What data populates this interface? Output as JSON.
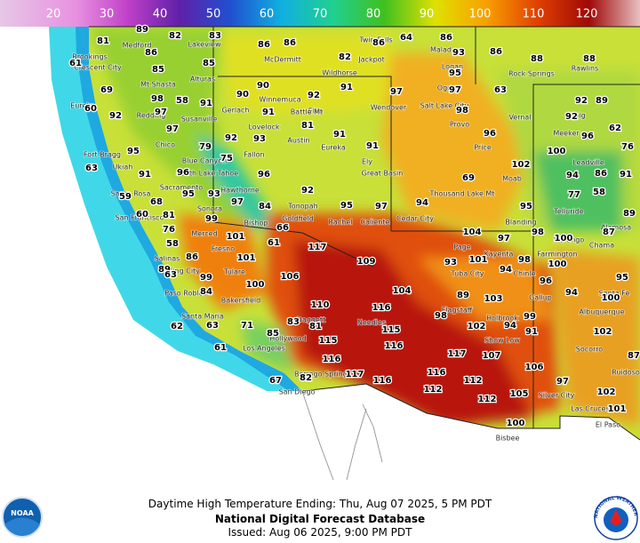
{
  "legend": {
    "values": [
      20,
      30,
      40,
      50,
      60,
      70,
      80,
      90,
      100,
      110,
      120
    ]
  },
  "temperatures": [
    81,
    89,
    82,
    83,
    86,
    86,
    64,
    86,
    86,
    61,
    86,
    85,
    85,
    82,
    86,
    88,
    88,
    93,
    95,
    90,
    69,
    98,
    58,
    91,
    90,
    92,
    91,
    97,
    97,
    63,
    89,
    92,
    60,
    92,
    97,
    91,
    98,
    81,
    96,
    92,
    62,
    97,
    92,
    93,
    91,
    95,
    79,
    91,
    100,
    96,
    76,
    75,
    91,
    96,
    102,
    94,
    86,
    91,
    63,
    96,
    92,
    69,
    59,
    68,
    95,
    93,
    97,
    84,
    95,
    97,
    94,
    95,
    77,
    58,
    89,
    60,
    81,
    99,
    76,
    66,
    101,
    61,
    117,
    104,
    97,
    98,
    100,
    87,
    58,
    86,
    101,
    109,
    93,
    101,
    94,
    98,
    100,
    89,
    63,
    99,
    106,
    84,
    100,
    104,
    89,
    103,
    96,
    94,
    100,
    95,
    110,
    116,
    98,
    99,
    102,
    94,
    91,
    102,
    62,
    63,
    71,
    83,
    81,
    115,
    85,
    115,
    116,
    117,
    107,
    87,
    61,
    116,
    106,
    67,
    82,
    117,
    116,
    112,
    116,
    112,
    97,
    105,
    102,
    112,
    101,
    100
  ],
  "places": [
    "Twin Falls",
    "Malad",
    "Brookings",
    "Medford",
    "Lakeview",
    "McDermitt",
    "Jackpot",
    "Rock Springs",
    "Rawlins",
    "Crescent City",
    "Logan",
    "Wildhorse",
    "Ogden",
    "Alturas",
    "Vernal",
    "Mt Shasta",
    "Winnemuca",
    "Salt Lake City",
    "Gerlach",
    "Elko",
    "Battle Mt",
    "Wendover",
    "Provo",
    "Eureka",
    "Redding",
    "Susanville",
    "Lovelock",
    "Craig",
    "Meeker",
    "Austin",
    "Eureka",
    "Price",
    "Chico",
    "Fallon",
    "Ely",
    "Fort Bragg",
    "Blue Canyon",
    "South Lake Tahoe",
    "Great Basin",
    "Moab",
    "Leadville",
    "Ukiah",
    "Sacramento",
    "Hawthorne",
    "Tonopah",
    "Thousand Lake Mt",
    "Telluride",
    "Santa Rosa",
    "Sonora",
    "Blanding",
    "Alamosa",
    "San Francisco",
    "Goldfield",
    "Bishop",
    "Rachel",
    "Caliente",
    "Cedar City",
    "Merced",
    "Page",
    "Kayenta",
    "Durango",
    "Chama",
    "Fresno",
    "Tulare",
    "Farmington",
    "Salinas",
    "King City",
    "Tuba City",
    "Chinle",
    "Paso Robles",
    "Bakersfield",
    "Flagstaff",
    "Gallup",
    "Santa Fe",
    "Santa Maria",
    "Albuquerque",
    "Holbrook",
    "Show Low",
    "Needles",
    "Daggett",
    "Los Angeles",
    "Hollywood",
    "San Diego",
    "Borrego Springs",
    "Socorro",
    "Ruidoso",
    "Silver City",
    "Las Cruces",
    "El Paso",
    "Bisbee"
  ],
  "caption": {
    "line1": "Daytime High Temperature Ending: Thu, Aug 07 2025, 5 PM PDT",
    "line2": "National Digital Forecast Database",
    "line3": "Issued: Aug 06 2025, 9:00 PM PDT"
  },
  "logos": {
    "noaa": "NOAA",
    "nws": "NATIONAL WEATHER SERVICE"
  }
}
